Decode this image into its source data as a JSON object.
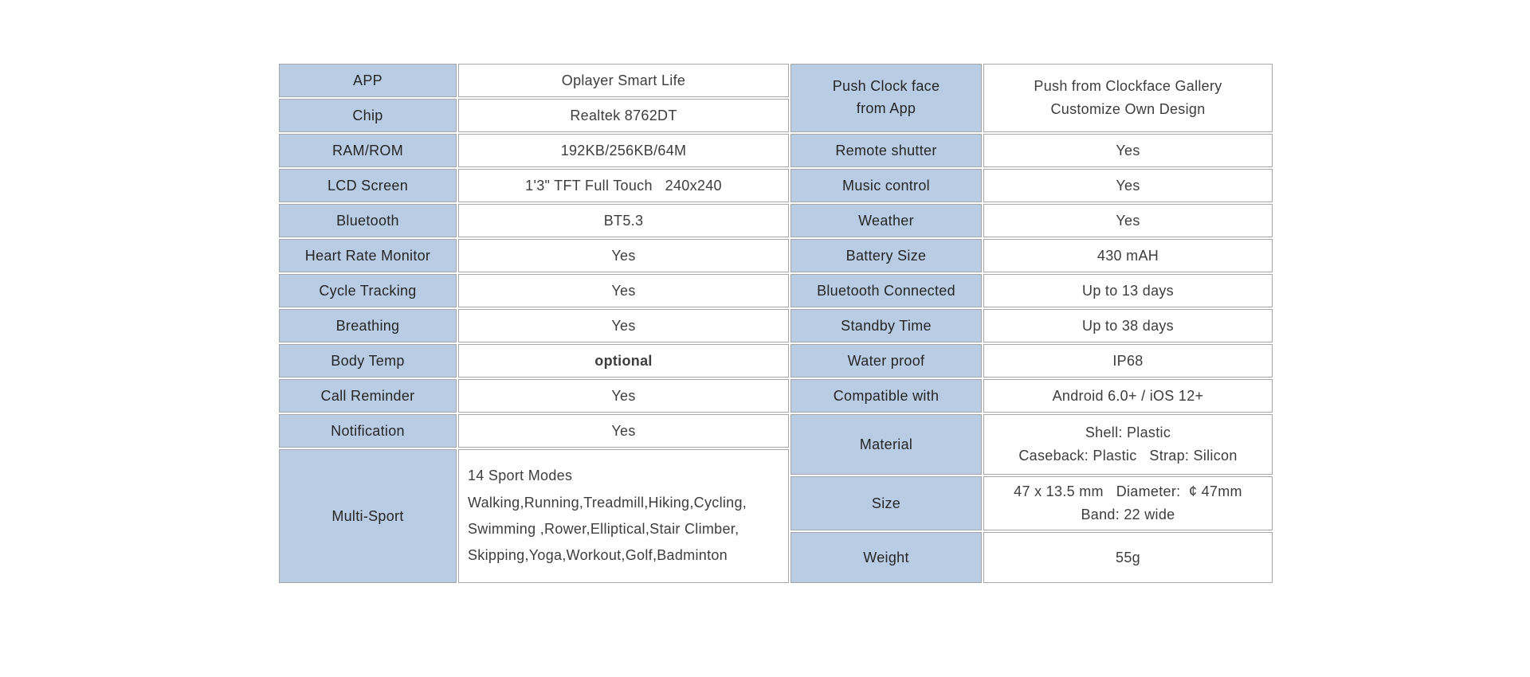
{
  "colors": {
    "label_bg": "#b8cce4",
    "border": "#a6a6a6",
    "label_text": "#262626",
    "value_text": "#3d3d3d",
    "page_bg": "#ffffff"
  },
  "spec_table": {
    "left": {
      "rows": [
        {
          "label": "APP",
          "value": "Oplayer Smart Life"
        },
        {
          "label": "Chip",
          "value": "Realtek 8762DT"
        },
        {
          "label": "RAM/ROM",
          "value": "192KB/256KB/64M"
        },
        {
          "label": "LCD Screen",
          "value": "1'3\" TFT Full Touch   240x240"
        },
        {
          "label": "Bluetooth",
          "value": "BT5.3"
        },
        {
          "label": "Heart Rate Monitor",
          "value": "Yes"
        },
        {
          "label": "Cycle Tracking",
          "value": "Yes"
        },
        {
          "label": "Breathing",
          "value": "Yes"
        },
        {
          "label": "Body Temp",
          "value": "optional"
        },
        {
          "label": "Call Reminder",
          "value": "Yes"
        },
        {
          "label": "Notification",
          "value": "Yes"
        },
        {
          "label": "Multi-Sport",
          "value": [
            "14 Sport Modes",
            "Walking,Running,Treadmill,Hiking,Cycling,",
            "Swimming ,Rower,Elliptical,Stair Climber,",
            "Skipping,Yoga,Workout,Golf,Badminton"
          ]
        }
      ]
    },
    "right": {
      "rows": [
        {
          "label": [
            "Push Clock face",
            "from App"
          ],
          "value": [
            "Push from Clockface Gallery",
            "Customize Own Design"
          ]
        },
        {
          "label": "Remote shutter",
          "value": "Yes"
        },
        {
          "label": "Music control",
          "value": "Yes"
        },
        {
          "label": "Weather",
          "value": "Yes"
        },
        {
          "label": "Battery Size",
          "value": "430 mAH"
        },
        {
          "label": "Bluetooth Connected",
          "value": "Up to 13 days"
        },
        {
          "label": "Standby Time",
          "value": "Up to 38 days"
        },
        {
          "label": "Water proof",
          "value": "IP68"
        },
        {
          "label": "Compatible with",
          "value": "Android 6.0+ / iOS 12+"
        },
        {
          "label": "Material",
          "value": [
            "Shell: Plastic",
            "Caseback: Plastic   Strap: Silicon"
          ]
        },
        {
          "label": "Size",
          "value": [
            "47 x 13.5 mm   Diameter:  ¢ 47mm",
            "Band: 22 wide"
          ]
        },
        {
          "label": "Weight",
          "value": "55g"
        }
      ]
    }
  }
}
